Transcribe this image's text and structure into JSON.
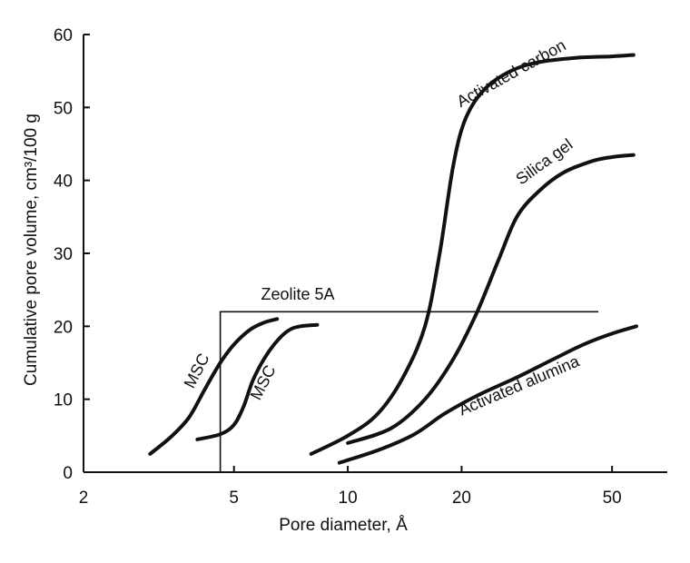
{
  "chart_data": {
    "type": "line",
    "title": "",
    "xlabel": "Pore diameter, Å",
    "ylabel": "Cumulative pore volume, cm³/100 g",
    "xscale": "log",
    "xlim": [
      2,
      70
    ],
    "ylim": [
      0,
      60
    ],
    "xticks": [
      {
        "value": 2,
        "label": "2"
      },
      {
        "value": 5,
        "label": "5"
      },
      {
        "value": 10,
        "label": "10"
      },
      {
        "value": 20,
        "label": "20"
      },
      {
        "value": 50,
        "label": "50"
      }
    ],
    "yticks": [
      {
        "value": 0,
        "label": "0"
      },
      {
        "value": 10,
        "label": "10"
      },
      {
        "value": 20,
        "label": "20"
      },
      {
        "value": 30,
        "label": "30"
      },
      {
        "value": 40,
        "label": "40"
      },
      {
        "value": 50,
        "label": "50"
      },
      {
        "value": 60,
        "label": "60"
      }
    ],
    "grid": false,
    "legend": "none",
    "series": [
      {
        "id": "msc-1",
        "name": "MSC",
        "points": [
          [
            3.0,
            2.5
          ],
          [
            3.4,
            4.8
          ],
          [
            3.8,
            7.5
          ],
          [
            4.2,
            11.5
          ],
          [
            4.6,
            15.0
          ],
          [
            5.0,
            17.5
          ],
          [
            5.5,
            19.5
          ],
          [
            6.0,
            20.5
          ],
          [
            6.5,
            21.0
          ]
        ]
      },
      {
        "id": "msc-2",
        "name": "MSC",
        "points": [
          [
            4.0,
            4.5
          ],
          [
            4.6,
            5.2
          ],
          [
            5.0,
            6.5
          ],
          [
            5.3,
            9.0
          ],
          [
            5.6,
            12.5
          ],
          [
            6.0,
            15.5
          ],
          [
            6.5,
            18.0
          ],
          [
            7.0,
            19.5
          ],
          [
            7.5,
            20.0
          ],
          [
            8.3,
            20.2
          ]
        ]
      },
      {
        "id": "activated-carbon",
        "name": "Activated carbon",
        "points": [
          [
            8.0,
            2.5
          ],
          [
            10.0,
            5.0
          ],
          [
            12.0,
            8.0
          ],
          [
            14.0,
            13.0
          ],
          [
            16.0,
            20.0
          ],
          [
            17.5,
            30.0
          ],
          [
            19.0,
            42.0
          ],
          [
            20.5,
            48.5
          ],
          [
            23.0,
            52.5
          ],
          [
            27.0,
            55.0
          ],
          [
            32.0,
            56.2
          ],
          [
            40.0,
            56.8
          ],
          [
            50.0,
            57.0
          ],
          [
            57.0,
            57.2
          ]
        ]
      },
      {
        "id": "silica-gel",
        "name": "Silica gel",
        "points": [
          [
            10.0,
            4.0
          ],
          [
            13.0,
            6.0
          ],
          [
            16.0,
            10.0
          ],
          [
            19.0,
            15.5
          ],
          [
            22.0,
            22.0
          ],
          [
            25.0,
            29.0
          ],
          [
            28.0,
            35.0
          ],
          [
            32.0,
            38.5
          ],
          [
            37.0,
            41.0
          ],
          [
            44.0,
            42.6
          ],
          [
            50.0,
            43.2
          ],
          [
            57.0,
            43.5
          ]
        ]
      },
      {
        "id": "activated-alumina",
        "name": "Activated alumina",
        "points": [
          [
            9.5,
            1.3
          ],
          [
            12.0,
            3.0
          ],
          [
            15.0,
            5.2
          ],
          [
            18.0,
            8.0
          ],
          [
            22.0,
            10.5
          ],
          [
            28.0,
            13.0
          ],
          [
            35.0,
            15.5
          ],
          [
            42.0,
            17.5
          ],
          [
            50.0,
            19.0
          ],
          [
            58.0,
            20.0
          ]
        ]
      }
    ],
    "zeolite": {
      "name": "Zeolite 5A",
      "cutoff_x": 4.6,
      "level_y": 22,
      "x_end": 46
    }
  }
}
